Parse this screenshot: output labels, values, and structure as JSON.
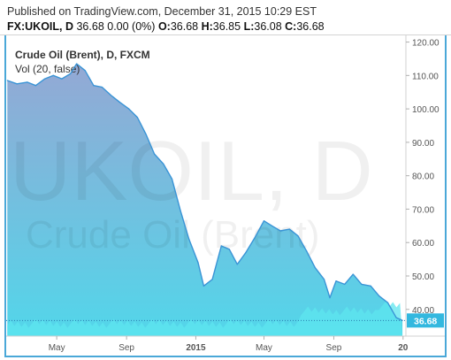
{
  "header": {
    "published": "Published on TradingView.com, December 31, 2015 10:29 EST",
    "symbol": "FX:UKOIL, D",
    "last": "36.68",
    "change": "0.00 (0%)",
    "open_label": "O:",
    "open": "36.68",
    "high_label": "H:",
    "high": "36.85",
    "low_label": "L:",
    "low": "36.08",
    "close_label": "C:",
    "close": "36.68"
  },
  "legend": {
    "title": "Crude Oil (Brent), D, FXCM",
    "volume": "Vol (20, false)"
  },
  "watermark": {
    "line1": "UKOIL, D",
    "line2": "Crude Oil (Brent)"
  },
  "price_badge": "36.68",
  "colors": {
    "line": "#3a94d6",
    "area_top": "#94a8d4",
    "area_bottom": "#52d6ea",
    "volume": "#5ee6ef",
    "badge": "#33b8df",
    "axis_text": "#555555",
    "border": "#4aa8d8"
  },
  "chart_data": {
    "type": "area",
    "title": "Crude Oil (Brent), D, FXCM",
    "x_ticks": [
      "May",
      "Sep",
      "2015",
      "May",
      "Sep",
      "20"
    ],
    "y_ticks": [
      "120.00",
      "110.00",
      "100.00",
      "90.00",
      "80.00",
      "70.00",
      "60.00",
      "50.00",
      "40.00"
    ],
    "ylim": [
      32,
      122
    ],
    "grid": false,
    "last_value": 36.68,
    "series": [
      {
        "dates": [
          "2014-02-03",
          "2014-02-20",
          "2014-03-10",
          "2014-03-25",
          "2014-04-10",
          "2014-04-25",
          "2014-05-10",
          "2014-05-25",
          "2014-06-05",
          "2014-06-20",
          "2014-07-05",
          "2014-07-20",
          "2014-08-05",
          "2014-08-20",
          "2014-09-05",
          "2014-09-20",
          "2014-10-05",
          "2014-10-20",
          "2014-11-05",
          "2014-11-20",
          "2014-12-05",
          "2014-12-20",
          "2015-01-05",
          "2015-01-15",
          "2015-01-30",
          "2015-02-15",
          "2015-03-01",
          "2015-03-15",
          "2015-03-30",
          "2015-04-15",
          "2015-05-01",
          "2015-05-15",
          "2015-05-30",
          "2015-06-15",
          "2015-06-30",
          "2015-07-15",
          "2015-07-30",
          "2015-08-15",
          "2015-08-25",
          "2015-09-05",
          "2015-09-20",
          "2015-10-05",
          "2015-10-20",
          "2015-11-05",
          "2015-11-20",
          "2015-12-05",
          "2015-12-20",
          "2015-12-31"
        ],
        "values": [
          108.5,
          107.5,
          108.0,
          107.0,
          109.0,
          110.0,
          109.0,
          110.5,
          113.5,
          111.5,
          107.0,
          106.5,
          104.0,
          102.0,
          100.0,
          97.5,
          92.5,
          86.5,
          83.5,
          79.0,
          69.5,
          61.0,
          54.0,
          47.0,
          49.0,
          59.0,
          58.0,
          53.5,
          57.0,
          61.5,
          66.5,
          65.0,
          63.5,
          64.0,
          62.0,
          57.5,
          52.5,
          49.0,
          43.5,
          48.5,
          47.5,
          50.5,
          47.5,
          47.0,
          44.0,
          42.0,
          37.5,
          36.68
        ]
      }
    ]
  }
}
